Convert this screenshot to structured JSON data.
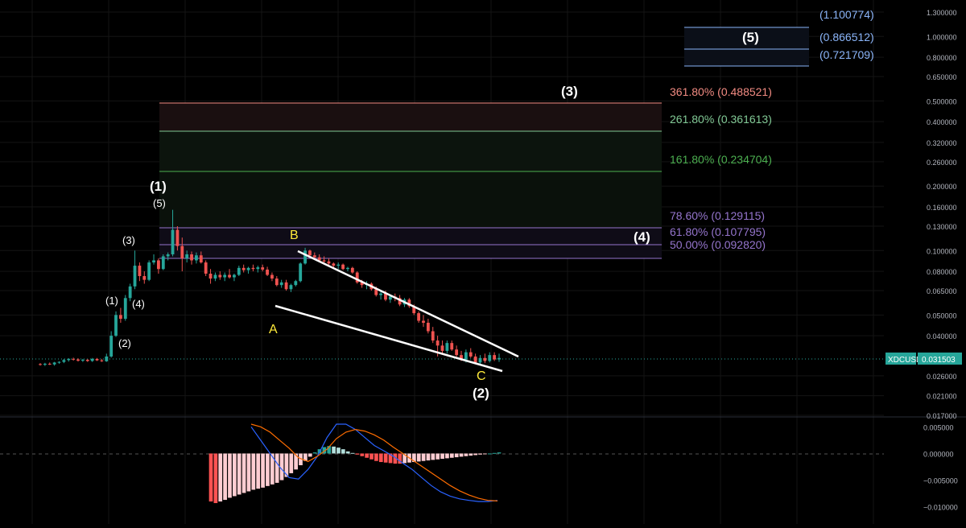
{
  "theme": {
    "background": "#000000",
    "up_color": "#26a69a",
    "down_color": "#ef5350",
    "grid_color": "#141414",
    "axis_text_color": "#b2b5be",
    "macd_color": "#2962ff",
    "signal_color": "#ff6d00",
    "fib_levels_color": "#9575cd",
    "label_white": "#ffffff",
    "label_yellow": "#ffeb3b"
  },
  "symbol_label": "XDCUSD",
  "price_label": "0.031503",
  "price_axis": {
    "ticks": [
      "1.300000",
      "1.000000",
      "0.800000",
      "0.650000",
      "0.500000",
      "0.400000",
      "0.320000",
      "0.260000",
      "0.200000",
      "0.160000",
      "0.130000",
      "0.100000",
      "0.080000",
      "0.065000",
      "0.050000",
      "0.040000",
      "0.026000",
      "0.021000",
      "0.017000"
    ]
  },
  "macd_axis": {
    "ticks": [
      "0.005000",
      "0.000000",
      "−0.005000",
      "−0.010000"
    ]
  },
  "fib_labels": {
    "f3618": "361.80% (0.488521)",
    "f2618": "261.80% (0.361613)",
    "f1618": "161.80% (0.234704)",
    "f786": "78.60% (0.129115)",
    "f618": "61.80% (0.107795)",
    "f50": "50.00% (0.092820)"
  },
  "target_labels": {
    "t1": "(1.100774)",
    "t2": "(0.866512)",
    "t3": "(0.721709)"
  },
  "wave_labels": {
    "w1_major": "(1)",
    "w2_major": "(2)",
    "w3_major": "(3)",
    "w4_major": "(4)",
    "w5_major": "(5)",
    "sub1": "(1)",
    "sub2": "(2)",
    "sub3": "(3)",
    "sub4": "(4)",
    "sub5": "(5)",
    "A": "A",
    "B": "B",
    "C": "C"
  },
  "chart_data": {
    "type": "candlestick",
    "symbol": "XDCUSD",
    "last_price": 0.031503,
    "y_scale": "log",
    "ylim": [
      0.017,
      1.3
    ],
    "candles": [
      [
        0.0295,
        0.0298,
        0.029,
        0.0293
      ],
      [
        0.0293,
        0.0299,
        0.0289,
        0.0296
      ],
      [
        0.0296,
        0.03,
        0.0292,
        0.0294
      ],
      [
        0.0294,
        0.0302,
        0.029,
        0.03
      ],
      [
        0.03,
        0.0304,
        0.0296,
        0.0302
      ],
      [
        0.0302,
        0.0312,
        0.0298,
        0.0308
      ],
      [
        0.0308,
        0.0314,
        0.0303,
        0.0312
      ],
      [
        0.0312,
        0.0316,
        0.0306,
        0.031
      ],
      [
        0.031,
        0.0314,
        0.0303,
        0.0306
      ],
      [
        0.0306,
        0.0312,
        0.0302,
        0.0309
      ],
      [
        0.0309,
        0.0311,
        0.0302,
        0.0305
      ],
      [
        0.0305,
        0.0315,
        0.0302,
        0.0312
      ],
      [
        0.0312,
        0.0315,
        0.0305,
        0.0307
      ],
      [
        0.0307,
        0.0312,
        0.0302,
        0.0304
      ],
      [
        0.0304,
        0.033,
        0.0302,
        0.032
      ],
      [
        0.032,
        0.042,
        0.0316,
        0.04
      ],
      [
        0.04,
        0.052,
        0.0395,
        0.05
      ],
      [
        0.05,
        0.054,
        0.046,
        0.048
      ],
      [
        0.048,
        0.062,
        0.047,
        0.06
      ],
      [
        0.06,
        0.07,
        0.058,
        0.068
      ],
      [
        0.068,
        0.1,
        0.066,
        0.085
      ],
      [
        0.085,
        0.088,
        0.072,
        0.076
      ],
      [
        0.076,
        0.08,
        0.07,
        0.073
      ],
      [
        0.073,
        0.09,
        0.072,
        0.088
      ],
      [
        0.088,
        0.096,
        0.086,
        0.09
      ],
      [
        0.09,
        0.092,
        0.078,
        0.082
      ],
      [
        0.082,
        0.096,
        0.081,
        0.094
      ],
      [
        0.094,
        0.098,
        0.09,
        0.096
      ],
      [
        0.096,
        0.155,
        0.094,
        0.125
      ],
      [
        0.125,
        0.13,
        0.1,
        0.105
      ],
      [
        0.105,
        0.115,
        0.08,
        0.092
      ],
      [
        0.092,
        0.1,
        0.088,
        0.096
      ],
      [
        0.096,
        0.099,
        0.086,
        0.09
      ],
      [
        0.09,
        0.098,
        0.087,
        0.095
      ],
      [
        0.095,
        0.099,
        0.087,
        0.088
      ],
      [
        0.088,
        0.09,
        0.076,
        0.078
      ],
      [
        0.078,
        0.082,
        0.07,
        0.074
      ],
      [
        0.074,
        0.079,
        0.072,
        0.077
      ],
      [
        0.077,
        0.08,
        0.073,
        0.075
      ],
      [
        0.075,
        0.079,
        0.072,
        0.077
      ],
      [
        0.077,
        0.082,
        0.074,
        0.075
      ],
      [
        0.075,
        0.078,
        0.072,
        0.077
      ],
      [
        0.077,
        0.085,
        0.076,
        0.083
      ],
      [
        0.083,
        0.086,
        0.079,
        0.081
      ],
      [
        0.081,
        0.084,
        0.078,
        0.083
      ],
      [
        0.083,
        0.086,
        0.08,
        0.082
      ],
      [
        0.082,
        0.085,
        0.079,
        0.0835
      ],
      [
        0.0835,
        0.086,
        0.08,
        0.0815
      ],
      [
        0.0815,
        0.084,
        0.076,
        0.077
      ],
      [
        0.077,
        0.079,
        0.072,
        0.074
      ],
      [
        0.074,
        0.076,
        0.068,
        0.069
      ],
      [
        0.069,
        0.073,
        0.067,
        0.071
      ],
      [
        0.071,
        0.073,
        0.065,
        0.066
      ],
      [
        0.066,
        0.07,
        0.064,
        0.069
      ],
      [
        0.069,
        0.073,
        0.068,
        0.072
      ],
      [
        0.072,
        0.088,
        0.071,
        0.087
      ],
      [
        0.087,
        0.103,
        0.086,
        0.1
      ],
      [
        0.1,
        0.101,
        0.093,
        0.095
      ],
      [
        0.095,
        0.098,
        0.092,
        0.093
      ],
      [
        0.093,
        0.096,
        0.088,
        0.09
      ],
      [
        0.09,
        0.094,
        0.086,
        0.089
      ],
      [
        0.089,
        0.092,
        0.085,
        0.087
      ],
      [
        0.087,
        0.088,
        0.083,
        0.085
      ],
      [
        0.085,
        0.088,
        0.082,
        0.086
      ],
      [
        0.086,
        0.087,
        0.081,
        0.082
      ],
      [
        0.082,
        0.084,
        0.08,
        0.083
      ],
      [
        0.083,
        0.084,
        0.078,
        0.079
      ],
      [
        0.079,
        0.08,
        0.07,
        0.071
      ],
      [
        0.071,
        0.073,
        0.067,
        0.069
      ],
      [
        0.069,
        0.072,
        0.066,
        0.07
      ],
      [
        0.07,
        0.071,
        0.065,
        0.066
      ],
      [
        0.066,
        0.068,
        0.061,
        0.062
      ],
      [
        0.062,
        0.065,
        0.059,
        0.063
      ],
      [
        0.063,
        0.065,
        0.058,
        0.059
      ],
      [
        0.059,
        0.062,
        0.057,
        0.061
      ],
      [
        0.061,
        0.063,
        0.058,
        0.06
      ],
      [
        0.06,
        0.062,
        0.055,
        0.056
      ],
      [
        0.056,
        0.06,
        0.0545,
        0.059
      ],
      [
        0.059,
        0.06,
        0.054,
        0.055
      ],
      [
        0.055,
        0.056,
        0.05,
        0.051
      ],
      [
        0.051,
        0.052,
        0.046,
        0.047
      ],
      [
        0.047,
        0.05,
        0.044,
        0.046
      ],
      [
        0.046,
        0.048,
        0.041,
        0.042
      ],
      [
        0.042,
        0.044,
        0.037,
        0.038
      ],
      [
        0.038,
        0.04,
        0.032,
        0.036
      ],
      [
        0.036,
        0.038,
        0.033,
        0.034
      ],
      [
        0.034,
        0.038,
        0.033,
        0.037
      ],
      [
        0.037,
        0.038,
        0.034,
        0.0345
      ],
      [
        0.0345,
        0.036,
        0.032,
        0.0325
      ],
      [
        0.0325,
        0.034,
        0.0305,
        0.031
      ],
      [
        0.031,
        0.0345,
        0.03,
        0.0335
      ],
      [
        0.0335,
        0.035,
        0.0315,
        0.032
      ],
      [
        0.032,
        0.033,
        0.0295,
        0.03
      ],
      [
        0.03,
        0.0325,
        0.0295,
        0.0315
      ],
      [
        0.0315,
        0.033,
        0.0298,
        0.0305
      ],
      [
        0.0305,
        0.0335,
        0.03,
        0.0325
      ],
      [
        0.0325,
        0.0335,
        0.0305,
        0.031
      ],
      [
        0.031,
        0.033,
        0.0302,
        0.0315
      ]
    ],
    "fib_levels": [
      {
        "label": "361.80%",
        "value": 0.488521,
        "color": "#f28b82"
      },
      {
        "label": "261.80%",
        "value": 0.361613,
        "color": "#81c995"
      },
      {
        "label": "161.80%",
        "value": 0.234704,
        "color": "#4caf50"
      },
      {
        "label": "78.60%",
        "value": 0.129115,
        "color": "#9575cd"
      },
      {
        "label": "61.80%",
        "value": 0.107795,
        "color": "#9575cd"
      },
      {
        "label": "50.00%",
        "value": 0.09282,
        "color": "#9575cd"
      }
    ],
    "target_levels": [
      1.100774,
      0.866512,
      0.721709
    ],
    "macd": {
      "ylim": [
        -0.0105,
        0.0055
      ],
      "hist": [
        -0.009,
        -0.0093,
        -0.009,
        -0.0087,
        -0.0083,
        -0.008,
        -0.0077,
        -0.0074,
        -0.0071,
        -0.0068,
        -0.0066,
        -0.0064,
        -0.0061,
        -0.0058,
        -0.0055,
        -0.005,
        -0.0044,
        -0.0037,
        -0.003,
        -0.0022,
        -0.0014,
        -0.0006,
        0.0002,
        0.0008,
        0.0012,
        0.0014,
        0.0013,
        0.0011,
        0.0008,
        0.0004,
        0.0001,
        -0.0002,
        -0.0005,
        -0.0008,
        -0.0011,
        -0.0014,
        -0.0016,
        -0.0017,
        -0.0018,
        -0.0019,
        -0.0019,
        -0.0018,
        -0.0017,
        -0.0016,
        -0.0015,
        -0.0014,
        -0.0013,
        -0.0012,
        -0.0011,
        -0.001,
        -0.0009,
        -0.0008,
        -0.0007,
        -0.0006,
        -0.0005,
        -0.0004,
        -0.0003,
        -0.0002,
        -0.0001,
        0.0,
        0.0001,
        0.0002
      ],
      "macd_line": [
        0.005,
        0.0025,
        0.0,
        -0.0025,
        -0.0045,
        -0.0048,
        -0.003,
        -0.0005,
        0.003,
        0.0055,
        0.0055,
        0.0045,
        0.003,
        0.0015,
        0.0005,
        -0.0005,
        -0.0018,
        -0.003,
        -0.0045,
        -0.006,
        -0.0072,
        -0.008,
        -0.0085,
        -0.0088,
        -0.009,
        -0.009,
        -0.0088
      ],
      "signal_line": [
        0.0055,
        0.005,
        0.004,
        0.0025,
        0.001,
        -0.0008,
        -0.0015,
        -0.0005,
        0.0008,
        0.0028,
        0.004,
        0.0045,
        0.0042,
        0.0035,
        0.0025,
        0.0012,
        0.0,
        -0.0012,
        -0.0024,
        -0.0036,
        -0.0048,
        -0.006,
        -0.007,
        -0.0078,
        -0.0084,
        -0.0088,
        -0.0089
      ]
    }
  }
}
